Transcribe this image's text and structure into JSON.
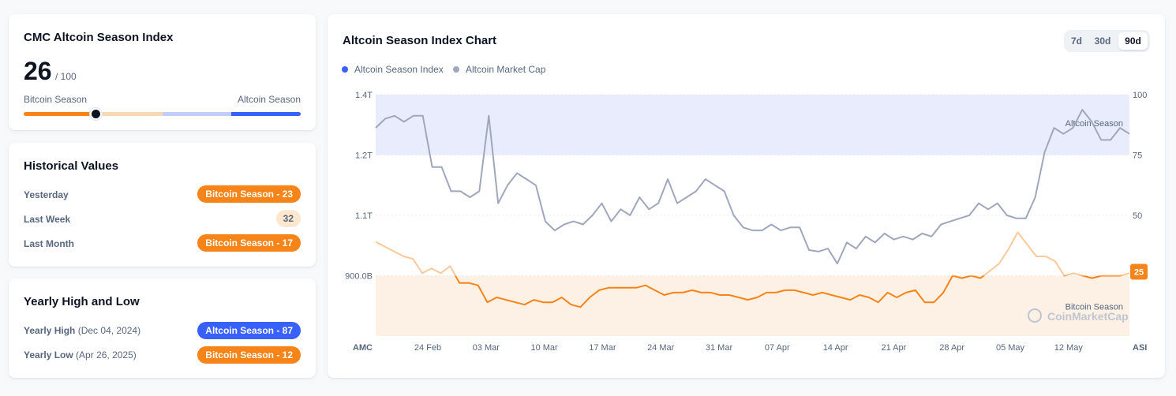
{
  "index_card": {
    "title": "CMC Altcoin Season Index",
    "value": "26",
    "max": "/ 100",
    "left_label": "Bitcoin Season",
    "right_label": "Altcoin Season"
  },
  "historical": {
    "title": "Historical Values",
    "rows": [
      {
        "label": "Yesterday",
        "badge": "Bitcoin Season - 23"
      },
      {
        "label": "Last Week",
        "badge": "32"
      },
      {
        "label": "Last Month",
        "badge": "Bitcoin Season - 17"
      }
    ]
  },
  "yearly": {
    "title": "Yearly High and Low",
    "high": {
      "label": "Yearly High",
      "date": "(Dec 04, 2024)",
      "badge": "Altcoin Season - 87"
    },
    "low": {
      "label": "Yearly Low",
      "date": "(Apr 26, 2025)",
      "badge": "Bitcoin Season - 12"
    }
  },
  "chart_card": {
    "title": "Altcoin Season Index Chart",
    "ranges": [
      "7d",
      "30d",
      "90d"
    ],
    "active_range": "90d",
    "watermark": "CoinMarketCap",
    "current_badge": "25"
  },
  "colors": {
    "orange": "#f68418",
    "blue": "#3861fb",
    "gray_line": "#a1a7bb",
    "blue_band": "#e8ecfd",
    "orange_band": "#fdf0e4"
  },
  "icons": {
    "watermark": "coinmarketcap-logo-icon"
  },
  "chart_data": {
    "type": "line",
    "title": "Altcoin Season Index Chart",
    "legend": [
      "Altcoin Season Index",
      "Altcoin Market Cap"
    ],
    "legend_position": "top-left",
    "x_ticks": [
      "24 Feb",
      "03 Mar",
      "10 Mar",
      "17 Mar",
      "24 Mar",
      "31 Mar",
      "07 Apr",
      "14 Apr",
      "21 Apr",
      "28 Apr",
      "05 May",
      "12 May"
    ],
    "x_start_label": "AMC",
    "x_end_label": "ASI",
    "left_axis": {
      "ticks": [
        "1.4T",
        "1.2T",
        "1.1T",
        "900.0B"
      ]
    },
    "right_axis": {
      "ticks": [
        "100",
        "75",
        "50",
        "25"
      ],
      "ylim": [
        0,
        100
      ]
    },
    "bands": [
      {
        "label": "Altcoin Season",
        "from": 75,
        "to": 100
      },
      {
        "label": "Bitcoin Season",
        "from": 0,
        "to": 25
      }
    ],
    "grid": true,
    "series": [
      {
        "name": "Altcoin Market Cap",
        "axis": "left",
        "values": [
          1.29,
          1.32,
          1.33,
          1.31,
          1.33,
          1.33,
          1.18,
          1.18,
          1.14,
          1.14,
          1.13,
          1.14,
          1.33,
          1.12,
          1.15,
          1.17,
          1.16,
          1.15,
          1.08,
          1.05,
          1.07,
          1.08,
          1.07,
          1.1,
          1.12,
          1.08,
          1.11,
          1.1,
          1.13,
          1.11,
          1.12,
          1.16,
          1.12,
          1.13,
          1.14,
          1.16,
          1.15,
          1.14,
          1.1,
          1.06,
          1.05,
          1.05,
          1.07,
          1.05,
          1.06,
          1.06,
          0.985,
          0.98,
          0.99,
          0.94,
          1.01,
          0.99,
          1.03,
          1.01,
          1.04,
          1.02,
          1.03,
          1.02,
          1.04,
          1.03,
          1.07,
          1.08,
          1.09,
          1.1,
          1.12,
          1.11,
          1.12,
          1.1,
          1.09,
          1.09,
          1.13,
          1.21,
          1.29,
          1.27,
          1.29,
          1.35,
          1.31,
          1.25,
          1.25,
          1.29,
          1.27
        ]
      },
      {
        "name": "Altcoin Season Index",
        "axis": "right",
        "values": [
          39,
          37,
          35,
          33,
          32,
          26,
          28,
          26,
          29,
          22,
          22,
          21,
          14,
          16,
          15,
          14,
          13,
          15,
          14,
          14,
          16,
          13,
          12,
          16,
          19,
          20,
          20,
          20,
          20,
          21,
          19,
          17,
          18,
          18,
          19,
          18,
          18,
          17,
          17,
          16,
          15,
          16,
          18,
          18,
          19,
          19,
          18,
          17,
          18,
          17,
          16,
          15,
          17,
          16,
          14,
          18,
          16,
          18,
          19,
          14,
          14,
          18,
          25,
          24,
          25,
          24,
          27,
          30,
          36,
          43,
          38,
          33,
          33,
          31,
          25,
          26,
          25,
          24,
          25,
          25,
          25,
          26
        ]
      }
    ]
  }
}
